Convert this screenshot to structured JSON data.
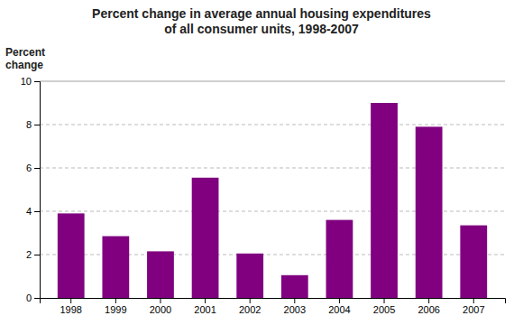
{
  "chart_data": {
    "type": "bar",
    "title": "Percent change in average annual housing expenditures\nof all consumer units, 1998-2007",
    "ylabel": "Percent\nchange",
    "categories": [
      "1998",
      "1999",
      "2000",
      "2001",
      "2002",
      "2003",
      "2004",
      "2005",
      "2006",
      "2007"
    ],
    "values": [
      3.9,
      2.85,
      2.15,
      5.55,
      2.05,
      1.05,
      3.6,
      9.0,
      7.9,
      3.35
    ],
    "color": "#800080",
    "ylim": [
      0,
      10
    ],
    "yticks": [
      0,
      2,
      4,
      6,
      8,
      10
    ],
    "grid": true
  }
}
